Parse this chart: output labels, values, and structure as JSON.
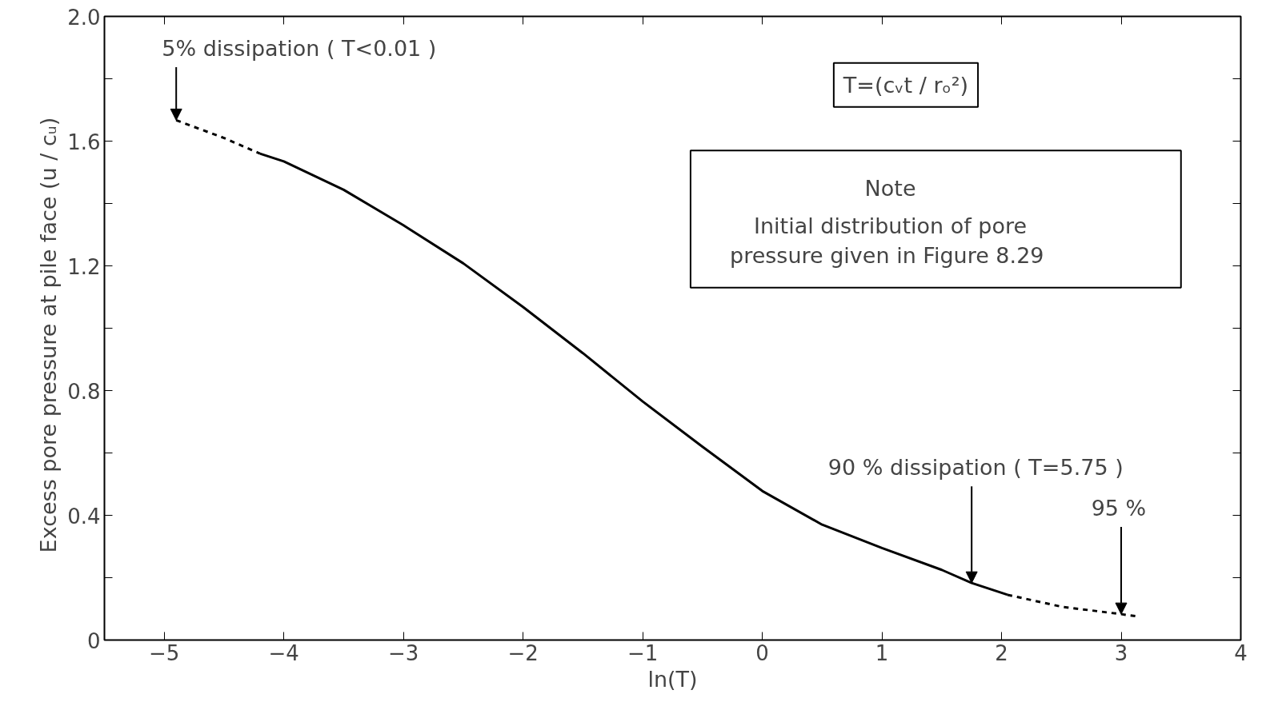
{
  "chart_data": {
    "type": "line",
    "xlabel": "ln(T)",
    "ylabel": "Excess  pore pressure at pile  face (u / cᵤ)",
    "xlim": [
      -5.5,
      4
    ],
    "ylim": [
      0,
      2.0
    ],
    "xticks": [
      -5,
      -4,
      -3,
      -2,
      -1,
      0,
      1,
      2,
      3,
      4
    ],
    "yticks": [
      0,
      {
        "value": 0.2,
        "label": null
      },
      0.4,
      {
        "value": 0.6,
        "label": null
      },
      0.8,
      {
        "value": 1.0,
        "label": null
      },
      1.2,
      {
        "value": 1.4,
        "label": null
      },
      1.6,
      {
        "value": 1.8,
        "label": null
      },
      {
        "value": 2.0,
        "label": "2.0"
      }
    ],
    "grid": false,
    "marker": "none",
    "series": [
      {
        "color": "#000000",
        "line_style": "dashed",
        "x": [
          -4.9,
          -4.5,
          -4.2
        ],
        "values": [
          1.667,
          1.61,
          1.56
        ]
      },
      {
        "color": "#000000",
        "line_style": "solid",
        "x": [
          -4.2,
          -4,
          -3.5,
          -3,
          -2.5,
          -2,
          -1.5,
          -1,
          -0.5,
          0,
          0.5,
          1,
          1.5,
          1.75,
          2.05
        ],
        "values": [
          1.56,
          1.535,
          1.444,
          1.33,
          1.208,
          1.068,
          0.92,
          0.765,
          0.62,
          0.478,
          0.37,
          0.295,
          0.225,
          0.183,
          0.145
        ]
      },
      {
        "color": "#000000",
        "line_style": "dashed",
        "x": [
          2.05,
          2.5,
          3,
          3.15
        ],
        "values": [
          0.145,
          0.107,
          0.083,
          0.075
        ]
      }
    ],
    "annotations": [
      {
        "text": "5% dissipation ( T<0.01 )",
        "x": -4.9,
        "y": 1.667
      },
      {
        "text": "90 % dissipation ( T=5.75 )",
        "x": 1.75,
        "y": 0.183
      },
      {
        "text": "95 %",
        "x": 3,
        "y": 0.083
      },
      "T=(cᵥt / rₒ²)",
      "Note",
      "Initial distribution of pore\npressure given in Figure  8.29"
    ]
  }
}
